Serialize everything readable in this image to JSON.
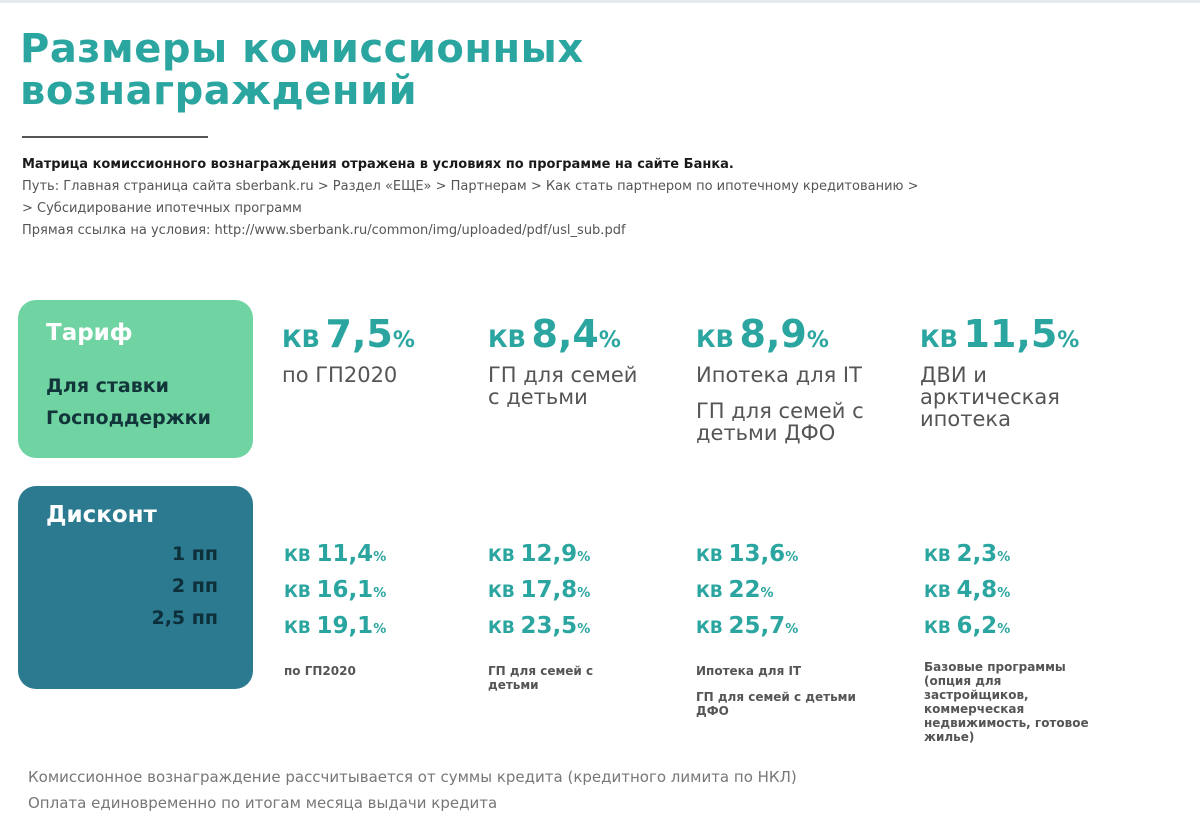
{
  "title": [
    "Размеры комиссионных",
    "вознаграждений"
  ],
  "info": {
    "lead": "Матрица комиссионного вознаграждения отражена в условиях по программе на сайте Банка.",
    "path_line1": "Путь: Главная страница сайта sberbank.ru  > Раздел «ЕЩЕ» > Партнерам > Как стать партнером по ипотечному кредитованию >",
    "path_line2": "> Субсидирование ипотечных программ",
    "link": "Прямая ссылка на условия: http://www.sberbank.ru/common/img/uploaded/pdf/usl_sub.pdf"
  },
  "tariff_box": {
    "title": "Тариф",
    "sub1": "Для ставки",
    "sub2": "Господдержки"
  },
  "tariff_columns": [
    {
      "kv": "КВ",
      "value": "7,5",
      "pct": "%",
      "desc": [
        "по ГП2020"
      ]
    },
    {
      "kv": "КВ",
      "value": "8,4",
      "pct": "%",
      "desc": [
        "ГП для семей",
        "с детьми"
      ]
    },
    {
      "kv": "КВ",
      "value": "8,9",
      "pct": "%",
      "desc": [
        "Ипотека для IT",
        "",
        "ГП для семей с",
        "детьми ДФО"
      ]
    },
    {
      "kv": "КВ",
      "value": "11,5",
      "pct": "%",
      "desc": [
        "ДВИ и",
        "арктическая",
        "ипотека"
      ]
    }
  ],
  "discount_box": {
    "title": "Дисконт",
    "levels": [
      "1 пп",
      "2 пп",
      "2,5 пп"
    ]
  },
  "discount_columns": [
    {
      "rates": [
        {
          "kv": "КВ",
          "value": "11,4",
          "pct": "%"
        },
        {
          "kv": "КВ",
          "value": "16,1",
          "pct": "%"
        },
        {
          "kv": "КВ",
          "value": "19,1",
          "pct": "%"
        }
      ],
      "desc": [
        "по ГП2020"
      ]
    },
    {
      "rates": [
        {
          "kv": "КВ",
          "value": "12,9",
          "pct": "%"
        },
        {
          "kv": "КВ",
          "value": "17,8",
          "pct": "%"
        },
        {
          "kv": "КВ",
          "value": "23,5",
          "pct": "%"
        }
      ],
      "desc": [
        "ГП для семей с",
        "детьми"
      ]
    },
    {
      "rates": [
        {
          "kv": "КВ",
          "value": "13,6",
          "pct": "%"
        },
        {
          "kv": "КВ",
          "value": "22",
          "pct": "%"
        },
        {
          "kv": "КВ",
          "value": "25,7",
          "pct": "%"
        }
      ],
      "desc": [
        "Ипотека для IT",
        "",
        "ГП для семей с детьми",
        "ДФО"
      ]
    },
    {
      "rates": [
        {
          "kv": "КВ",
          "value": "2,3",
          "pct": "%"
        },
        {
          "kv": "КВ",
          "value": "4,8",
          "pct": "%"
        },
        {
          "kv": "КВ",
          "value": "6,2",
          "pct": "%"
        }
      ],
      "desc": [
        "Базовые программы",
        "(опция для",
        "застройщиков,",
        "коммерческая",
        "недвижимость, готовое",
        "жилье)"
      ]
    }
  ],
  "footer": [
    "Комиссионное вознаграждение рассчитывается от суммы кредита (кредитного лимита по НКЛ)",
    "Оплата единовременно по итогам месяца выдачи кредита"
  ]
}
